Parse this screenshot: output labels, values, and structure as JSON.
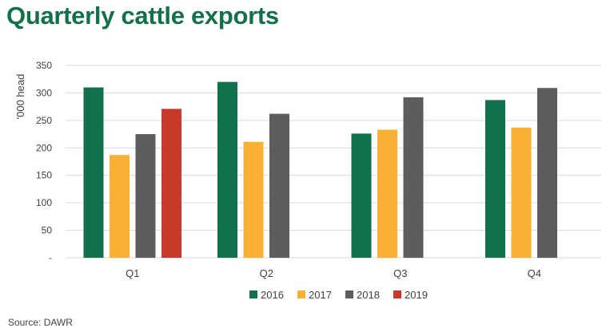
{
  "title": "Quarterly cattle exports",
  "source": "Source: DAWR",
  "colors": {
    "title": "#13714a",
    "2016": "#12704a",
    "2017": "#f8b132",
    "2018": "#5d5d5d",
    "2019": "#c8392b",
    "grid": "#d9d9d9",
    "text": "#404040"
  },
  "chart_data": {
    "type": "bar",
    "title": "Quarterly cattle exports",
    "ylabel": "'000 head",
    "xlabel": "",
    "categories": [
      "Q1",
      "Q2",
      "Q3",
      "Q4"
    ],
    "ylim": [
      0,
      350
    ],
    "yticks": [
      0,
      50,
      100,
      150,
      200,
      250,
      300,
      350
    ],
    "ytick_labels": [
      "-",
      "50",
      "100",
      "150",
      "200",
      "250",
      "300",
      "350"
    ],
    "grid": true,
    "legend_position": "bottom",
    "series": [
      {
        "name": "2016",
        "color": "#12704a",
        "values": [
          310,
          320,
          226,
          287
        ]
      },
      {
        "name": "2017",
        "color": "#f8b132",
        "values": [
          187,
          211,
          233,
          237
        ]
      },
      {
        "name": "2018",
        "color": "#5d5d5d",
        "values": [
          225,
          262,
          292,
          309
        ]
      },
      {
        "name": "2019",
        "color": "#c8392b",
        "values": [
          271,
          null,
          null,
          null
        ]
      }
    ]
  }
}
